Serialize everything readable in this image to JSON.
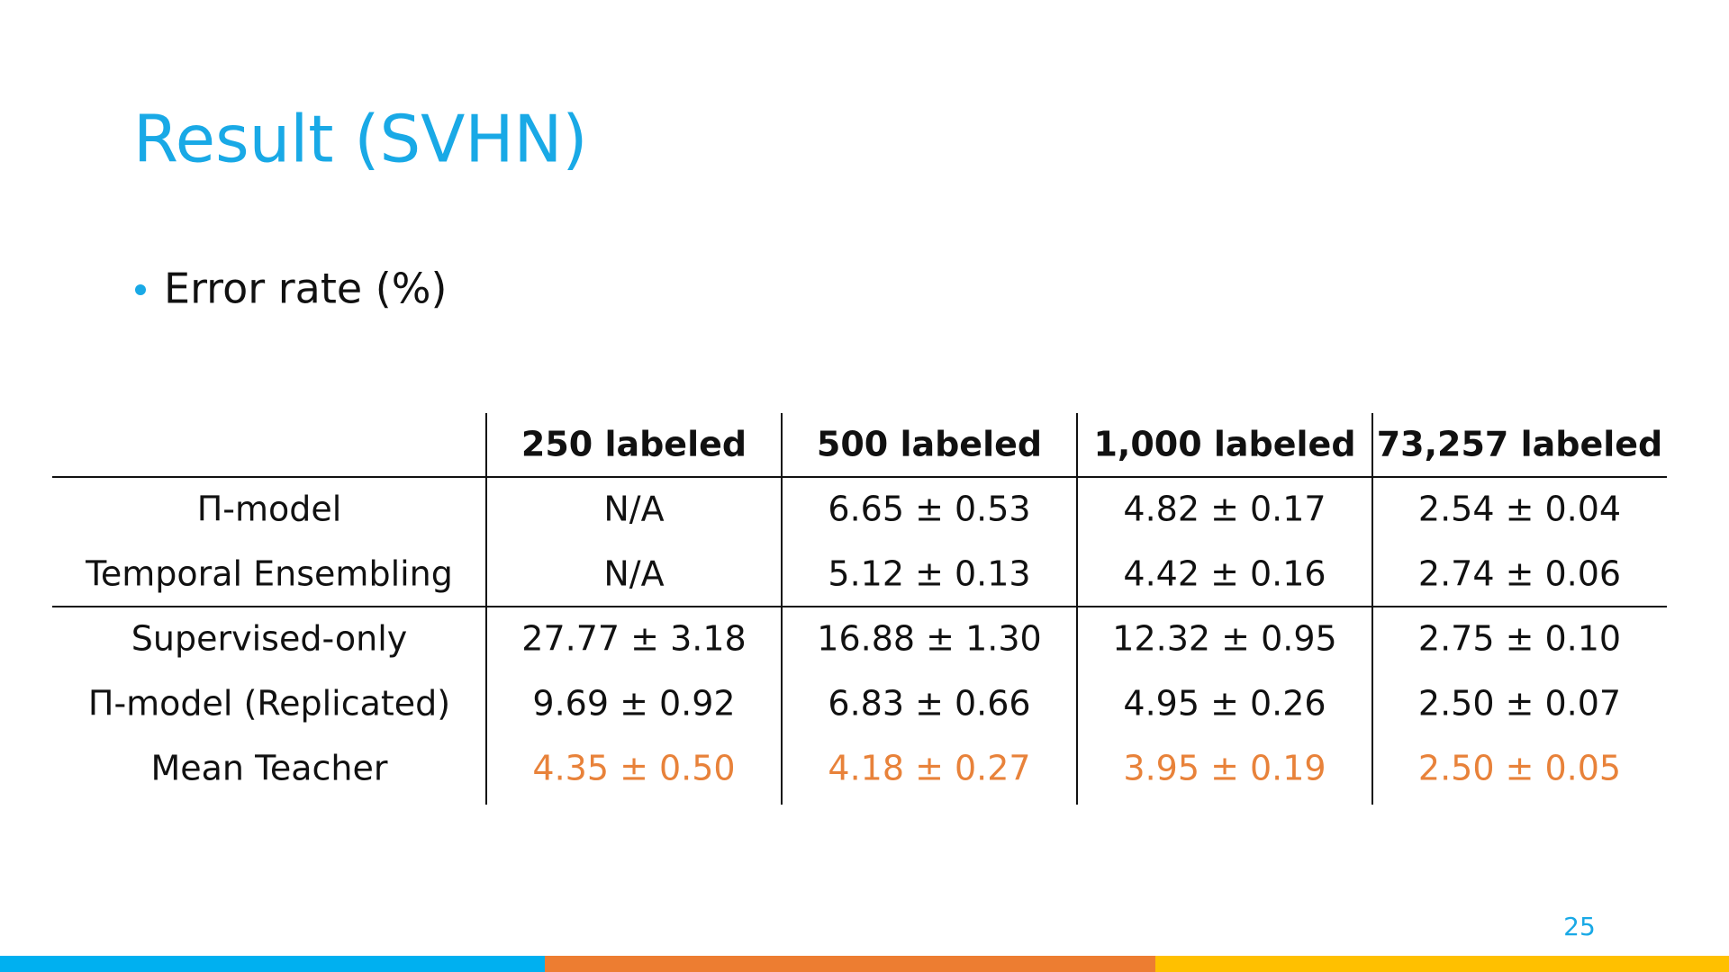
{
  "header": {
    "title": "Result (SVHN)"
  },
  "bullet": "Error rate (%)",
  "table": {
    "columns": [
      "250 labeled",
      "500 labeled",
      "1,000 labeled",
      "73,257 labeled"
    ],
    "groups": [
      [
        {
          "label": "Π-model",
          "cells": [
            "N/A",
            "6.65 ± 0.53",
            "4.82 ± 0.17",
            "2.54 ± 0.04"
          ]
        },
        {
          "label": "Temporal Ensembling",
          "cells": [
            "N/A",
            "5.12 ± 0.13",
            "4.42 ± 0.16",
            "2.74 ± 0.06"
          ]
        }
      ],
      [
        {
          "label": "Supervised-only",
          "cells": [
            "27.77 ± 3.18",
            "16.88 ± 1.30",
            "12.32 ± 0.95",
            "2.75 ± 0.10"
          ]
        },
        {
          "label": "Π-model (Replicated)",
          "cells": [
            "9.69 ± 0.92",
            "6.83 ± 0.66",
            "4.95 ± 0.26",
            "2.50 ± 0.07"
          ]
        },
        {
          "label": "Mean Teacher",
          "cells": [
            "4.35 ± 0.50",
            "4.18 ± 0.27",
            "3.95 ± 0.19",
            "2.50 ± 0.05"
          ],
          "color": "#e8823a"
        }
      ]
    ]
  },
  "page_number": "25"
}
